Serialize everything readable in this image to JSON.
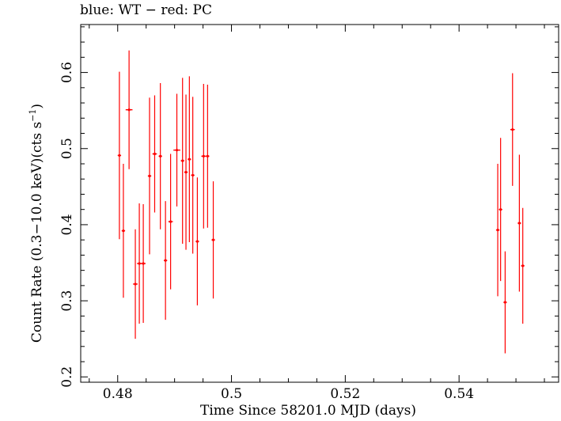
{
  "chart_data": {
    "type": "scatter",
    "title": "blue: WT − red: PC",
    "xlabel": "Time Since 58201.0 MJD (days)",
    "ylabel_main": "Count Rate (0.3−10.0 keV)(cts s",
    "ylabel_sup": "−1",
    "ylabel_end": ")",
    "xlim": [
      0.4735,
      0.5575
    ],
    "ylim": [
      0.193,
      0.663
    ],
    "xticks": [
      {
        "value": 0.48,
        "label": "0.48"
      },
      {
        "value": 0.5,
        "label": "0.5"
      },
      {
        "value": 0.52,
        "label": "0.52"
      },
      {
        "value": 0.54,
        "label": "0.54"
      }
    ],
    "yticks": [
      {
        "value": 0.2,
        "label": "0.2"
      },
      {
        "value": 0.3,
        "label": "0.3"
      },
      {
        "value": 0.4,
        "label": "0.4"
      },
      {
        "value": 0.5,
        "label": "0.5"
      },
      {
        "value": 0.6,
        "label": "0.6"
      }
    ],
    "series": [
      {
        "color": "#ff0000",
        "points": [
          {
            "x": 0.4803,
            "y": 0.491,
            "xerr": 0.0003,
            "yerr": 0.11
          },
          {
            "x": 0.481,
            "y": 0.392,
            "xerr": 0.0003,
            "yerr": 0.088
          },
          {
            "x": 0.482,
            "y": 0.551,
            "xerr": 0.0006,
            "yerr": 0.078
          },
          {
            "x": 0.4831,
            "y": 0.322,
            "xerr": 0.0004,
            "yerr": 0.072
          },
          {
            "x": 0.4838,
            "y": 0.349,
            "xerr": 0.0004,
            "yerr": 0.079
          },
          {
            "x": 0.4845,
            "y": 0.349,
            "xerr": 0.0004,
            "yerr": 0.078
          },
          {
            "x": 0.4856,
            "y": 0.464,
            "xerr": 0.0003,
            "yerr": 0.103
          },
          {
            "x": 0.4865,
            "y": 0.493,
            "xerr": 0.0004,
            "yerr": 0.077
          },
          {
            "x": 0.4875,
            "y": 0.49,
            "xerr": 0.0003,
            "yerr": 0.096
          },
          {
            "x": 0.4884,
            "y": 0.353,
            "xerr": 0.0003,
            "yerr": 0.078
          },
          {
            "x": 0.4893,
            "y": 0.404,
            "xerr": 0.0004,
            "yerr": 0.089
          },
          {
            "x": 0.4904,
            "y": 0.498,
            "xerr": 0.0006,
            "yerr": 0.074
          },
          {
            "x": 0.4914,
            "y": 0.484,
            "xerr": 0.0003,
            "yerr": 0.109
          },
          {
            "x": 0.492,
            "y": 0.469,
            "xerr": 0.0003,
            "yerr": 0.102
          },
          {
            "x": 0.4926,
            "y": 0.486,
            "xerr": 0.0003,
            "yerr": 0.109
          },
          {
            "x": 0.4932,
            "y": 0.465,
            "xerr": 0.0003,
            "yerr": 0.103
          },
          {
            "x": 0.494,
            "y": 0.378,
            "xerr": 0.0003,
            "yerr": 0.084
          },
          {
            "x": 0.4951,
            "y": 0.49,
            "xerr": 0.0004,
            "yerr": 0.095
          },
          {
            "x": 0.4958,
            "y": 0.49,
            "xerr": 0.0003,
            "yerr": 0.094
          },
          {
            "x": 0.4968,
            "y": 0.38,
            "xerr": 0.0003,
            "yerr": 0.077
          },
          {
            "x": 0.5468,
            "y": 0.393,
            "xerr": 0.0003,
            "yerr": 0.087
          },
          {
            "x": 0.5473,
            "y": 0.42,
            "xerr": 0.0003,
            "yerr": 0.094
          },
          {
            "x": 0.5481,
            "y": 0.298,
            "xerr": 0.0003,
            "yerr": 0.067
          },
          {
            "x": 0.5494,
            "y": 0.525,
            "xerr": 0.0004,
            "yerr": 0.074
          },
          {
            "x": 0.5506,
            "y": 0.402,
            "xerr": 0.0003,
            "yerr": 0.09
          },
          {
            "x": 0.5512,
            "y": 0.346,
            "xerr": 0.0003,
            "yerr": 0.076
          }
        ]
      }
    ],
    "grid": false,
    "legend": "none"
  }
}
